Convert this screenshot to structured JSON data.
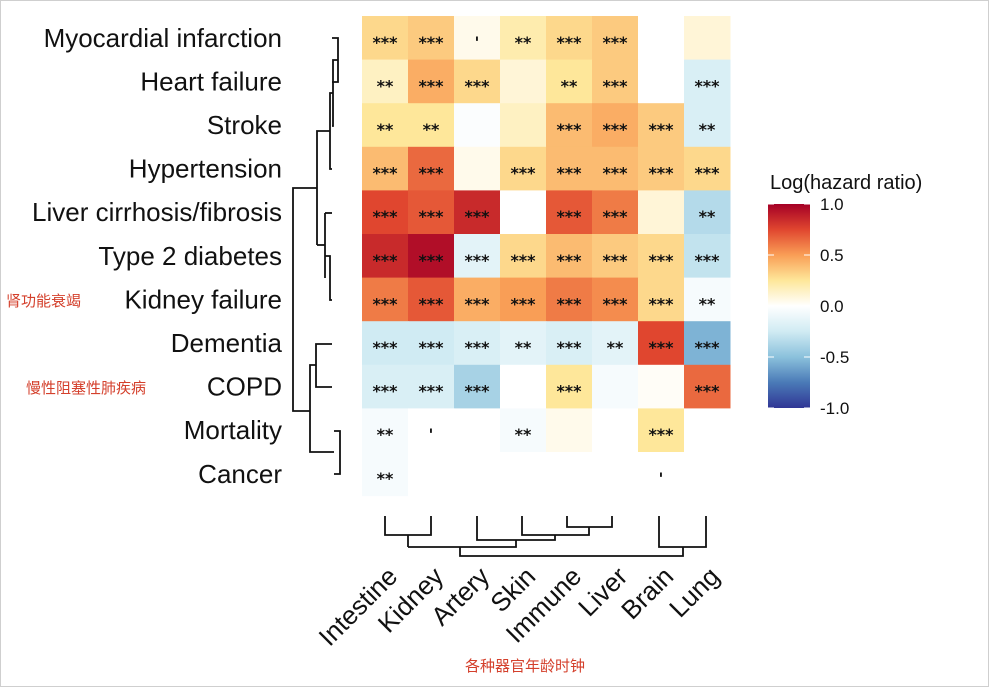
{
  "chart_data": {
    "type": "heatmap",
    "rows": [
      "Myocardial infarction",
      "Heart failure",
      "Stroke",
      "Hypertension",
      "Liver cirrhosis/fibrosis",
      "Type 2 diabetes",
      "Kidney failure",
      "Dementia",
      "COPD",
      "Mortality",
      "Cancer"
    ],
    "columns": [
      "Intestine",
      "Kidney",
      "Artery",
      "Skin",
      "Immune",
      "Liver",
      "Brain",
      "Lung"
    ],
    "values": [
      [
        0.3,
        0.35,
        0.05,
        0.2,
        0.3,
        0.35,
        0.0,
        0.1
      ],
      [
        0.15,
        0.45,
        0.3,
        0.1,
        0.25,
        0.35,
        0.0,
        -0.2
      ],
      [
        0.25,
        0.25,
        -0.02,
        0.15,
        0.4,
        0.45,
        0.35,
        -0.2
      ],
      [
        0.4,
        0.65,
        0.05,
        0.3,
        0.4,
        0.4,
        0.35,
        0.3
      ],
      [
        0.75,
        0.7,
        0.85,
        0.0,
        0.7,
        0.6,
        0.1,
        -0.35
      ],
      [
        0.85,
        0.95,
        -0.15,
        0.3,
        0.4,
        0.35,
        0.3,
        -0.3
      ],
      [
        0.6,
        0.7,
        0.45,
        0.5,
        0.6,
        0.55,
        0.3,
        -0.05
      ],
      [
        -0.25,
        -0.25,
        -0.2,
        -0.15,
        -0.2,
        -0.15,
        0.75,
        -0.55
      ],
      [
        -0.2,
        -0.2,
        -0.4,
        0.0,
        0.25,
        -0.05,
        0.02,
        0.65
      ],
      [
        -0.05,
        0.0,
        0.0,
        -0.05,
        0.05,
        0.0,
        0.25,
        0.0
      ],
      [
        -0.05,
        0.0,
        0.0,
        0.0,
        0.0,
        0.0,
        0.0,
        0.0
      ]
    ],
    "significance": [
      [
        "***",
        "***",
        "'",
        "**",
        "***",
        "***",
        "",
        ""
      ],
      [
        "**",
        "***",
        "***",
        "",
        "**",
        "***",
        "",
        "***"
      ],
      [
        "**",
        "**",
        "",
        "",
        "***",
        "***",
        "***",
        "**"
      ],
      [
        "***",
        "***",
        "",
        "***",
        "***",
        "***",
        "***",
        "***"
      ],
      [
        "***",
        "***",
        "***",
        "",
        "***",
        "***",
        "",
        "**"
      ],
      [
        "***",
        "***",
        "***",
        "***",
        "***",
        "***",
        "***",
        "***"
      ],
      [
        "***",
        "***",
        "***",
        "***",
        "***",
        "***",
        "***",
        "**"
      ],
      [
        "***",
        "***",
        "***",
        "**",
        "***",
        "**",
        "***",
        "***"
      ],
      [
        "***",
        "***",
        "***",
        "",
        "***",
        "",
        "",
        "***"
      ],
      [
        "**",
        "'",
        "",
        "**",
        "",
        "",
        "***",
        ""
      ],
      [
        "**",
        "",
        "",
        "",
        "",
        "",
        "'",
        ""
      ]
    ],
    "row_annotations": {
      "Kidney failure": "肾功能衰竭",
      "COPD": "慢性阻塞性肺疾病"
    },
    "xlabel": "各种器官年龄时钟",
    "legend": {
      "title": "Log(hazard ratio)",
      "ticks": [
        "1.0",
        "0.5",
        "0.0",
        "-0.5",
        "-1.0"
      ],
      "range": [
        -1.0,
        1.0
      ]
    },
    "colors": {
      "low": "#313695",
      "mid": "#ffffff",
      "high": "#a50026",
      "annotation": "#d4402c"
    }
  }
}
